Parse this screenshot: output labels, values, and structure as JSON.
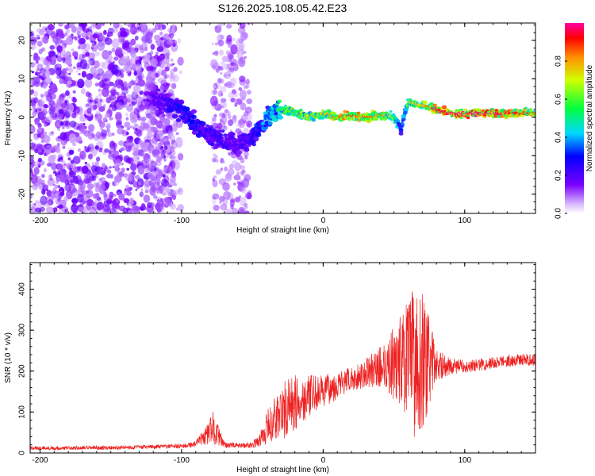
{
  "title": "S126.2025.108.05.42.E23",
  "chart_data": [
    {
      "type": "heatmap",
      "xlabel": "Height of straight line (km)",
      "ylabel": "Frequency (Hz)",
      "xlim": [
        -207,
        150
      ],
      "ylim": [
        -25,
        24.5
      ],
      "xticks": [
        -200,
        -100,
        0,
        100
      ],
      "yticks": [
        -20,
        -10,
        0,
        10,
        20
      ],
      "colorbar": {
        "label": "Normalized spectral amplitude",
        "range": [
          0,
          1
        ],
        "ticks": [
          "0.0",
          "0.2",
          "0.4",
          "0.6",
          "0.8"
        ],
        "tick_values": [
          0.0,
          0.2,
          0.4,
          0.6,
          0.8
        ]
      },
      "ridge": {
        "x": [
          -125,
          -110,
          -100,
          -90,
          -80,
          -70,
          -60,
          -50,
          -45,
          -40,
          -35,
          -30,
          -20,
          -10,
          0,
          10,
          20,
          30,
          40,
          50,
          55,
          60,
          70,
          80,
          90,
          100,
          110,
          120,
          130,
          140,
          150
        ],
        "freq": [
          5,
          4,
          2,
          -2,
          -5,
          -6,
          -7,
          -5,
          -3,
          0,
          1,
          2,
          1,
          0,
          1,
          0,
          0.5,
          0,
          0.5,
          0,
          -3,
          4,
          3,
          2,
          1,
          1,
          1,
          1,
          1,
          1,
          1
        ],
        "amplitude": [
          0.15,
          0.25,
          0.3,
          0.3,
          0.25,
          0.25,
          0.2,
          0.3,
          0.35,
          0.4,
          0.45,
          0.55,
          0.6,
          0.65,
          0.7,
          0.75,
          0.8,
          0.8,
          0.75,
          0.6,
          0.3,
          0.6,
          0.7,
          0.85,
          0.9,
          0.95,
          0.95,
          0.9,
          0.85,
          0.8,
          0.75
        ]
      }
    },
    {
      "type": "line",
      "xlabel": "Height of straight line (km)",
      "ylabel": "SNR (10 * v/v)",
      "xlim": [
        -207,
        150
      ],
      "ylim": [
        0,
        465
      ],
      "xticks": [
        -200,
        -100,
        0,
        100
      ],
      "yticks": [
        0,
        100,
        200,
        300,
        400
      ],
      "series": [
        {
          "color": "#ee2222",
          "envelope_x": [
            -207,
            -180,
            -150,
            -120,
            -100,
            -90,
            -82,
            -78,
            -74,
            -70,
            -60,
            -50,
            -45,
            -40,
            -35,
            -30,
            -25,
            -20,
            -15,
            -10,
            -5,
            0,
            10,
            20,
            30,
            40,
            50,
            55,
            60,
            65,
            70,
            75,
            80,
            90,
            100,
            110,
            120,
            130,
            140,
            150
          ],
          "envelope_mean": [
            12,
            12,
            13,
            15,
            17,
            22,
            45,
            62,
            42,
            20,
            18,
            20,
            30,
            60,
            80,
            95,
            110,
            120,
            130,
            140,
            145,
            150,
            165,
            180,
            195,
            210,
            220,
            225,
            225,
            225,
            225,
            222,
            215,
            212,
            212,
            215,
            220,
            225,
            228,
            228
          ],
          "envelope_spread": [
            5,
            5,
            5,
            5,
            6,
            8,
            25,
            40,
            25,
            8,
            6,
            8,
            15,
            40,
            55,
            70,
            75,
            70,
            60,
            50,
            45,
            40,
            35,
            30,
            35,
            50,
            90,
            120,
            150,
            190,
            170,
            110,
            40,
            20,
            15,
            15,
            15,
            15,
            15,
            15
          ]
        }
      ]
    }
  ]
}
